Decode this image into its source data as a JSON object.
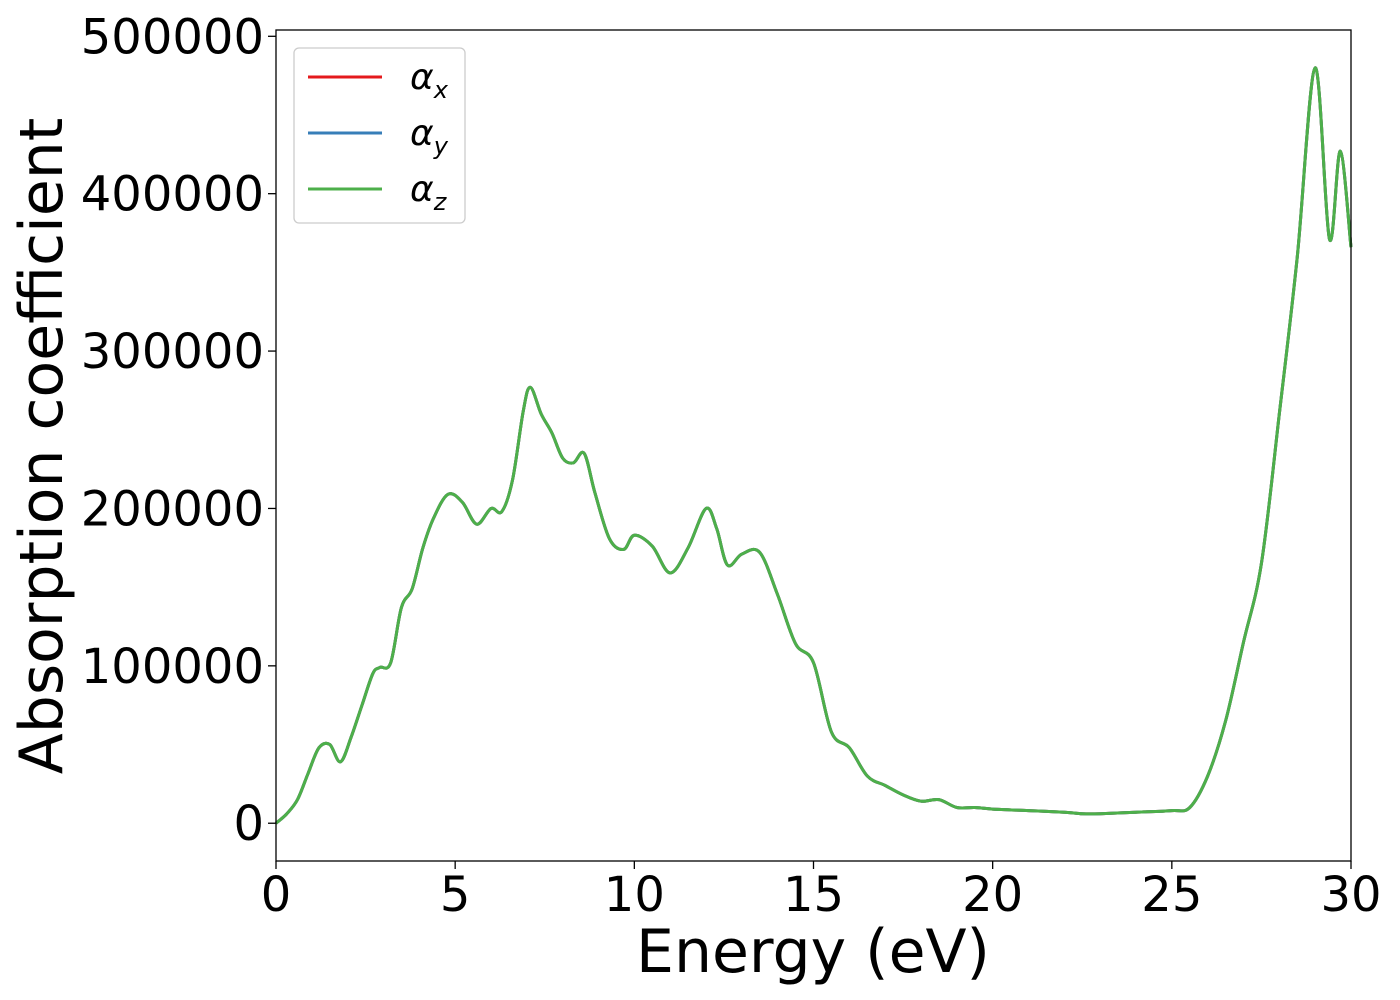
{
  "chart_data": {
    "type": "line",
    "title": "",
    "xlabel": "Energy (eV)",
    "ylabel": "Absorption coefficient",
    "xlim": [
      0,
      30
    ],
    "ylim": [
      -24000,
      504000
    ],
    "xticks": [
      0,
      5,
      10,
      15,
      20,
      25,
      30
    ],
    "yticks": [
      0,
      100000,
      200000,
      300000,
      400000,
      500000
    ],
    "xtick_labels": [
      "0",
      "5",
      "10",
      "15",
      "20",
      "25",
      "30"
    ],
    "ytick_labels": [
      "0",
      "100000",
      "200000",
      "300000",
      "400000",
      "500000"
    ],
    "grid": false,
    "legend_position": "top-left",
    "series": [
      {
        "name": "α",
        "subscript": "x",
        "color": "#e41a1c",
        "x": [
          0,
          0.3,
          0.6,
          0.9,
          1.2,
          1.5,
          1.8,
          2.1,
          2.4,
          2.7,
          2.9,
          3.2,
          3.5,
          3.8,
          4.1,
          4.4,
          4.8,
          5.2,
          5.6,
          6.0,
          6.3,
          6.6,
          6.9,
          7.1,
          7.4,
          7.7,
          8.0,
          8.3,
          8.6,
          8.9,
          9.3,
          9.7,
          10.0,
          10.5,
          11.0,
          11.5,
          12.0,
          12.3,
          12.6,
          13.0,
          13.5,
          14.0,
          14.5,
          15.0,
          15.5,
          16.0,
          16.5,
          17.0,
          17.5,
          18.0,
          18.5,
          19.0,
          19.5,
          20.0,
          21.0,
          22.0,
          22.5,
          23.0,
          24.0,
          25.0,
          25.5,
          26.0,
          26.5,
          27.0,
          27.5,
          28.0,
          28.5,
          29.0,
          29.4,
          29.7,
          30.0
        ],
        "values": [
          0,
          6000,
          15000,
          32000,
          48000,
          50000,
          39000,
          55000,
          75000,
          95000,
          99000,
          102000,
          137000,
          149000,
          175000,
          194000,
          209000,
          204000,
          190000,
          200000,
          198000,
          218000,
          262000,
          277000,
          260000,
          248000,
          232000,
          229000,
          235000,
          210000,
          181000,
          174000,
          183000,
          176000,
          159000,
          175000,
          200000,
          187000,
          164000,
          171000,
          172000,
          145000,
          114000,
          102000,
          58000,
          48000,
          30000,
          24000,
          18000,
          14000,
          15000,
          10000,
          10000,
          9000,
          8000,
          7000,
          6000,
          6000,
          7000,
          8000,
          10000,
          30000,
          65000,
          115000,
          165000,
          260000,
          360000,
          480000,
          371000,
          427000,
          366000
        ]
      },
      {
        "name": "α",
        "subscript": "y",
        "color": "#377eb8",
        "x": [
          0,
          0.3,
          0.6,
          0.9,
          1.2,
          1.5,
          1.8,
          2.1,
          2.4,
          2.7,
          2.9,
          3.2,
          3.5,
          3.8,
          4.1,
          4.4,
          4.8,
          5.2,
          5.6,
          6.0,
          6.3,
          6.6,
          6.9,
          7.1,
          7.4,
          7.7,
          8.0,
          8.3,
          8.6,
          8.9,
          9.3,
          9.7,
          10.0,
          10.5,
          11.0,
          11.5,
          12.0,
          12.3,
          12.6,
          13.0,
          13.5,
          14.0,
          14.5,
          15.0,
          15.5,
          16.0,
          16.5,
          17.0,
          17.5,
          18.0,
          18.5,
          19.0,
          19.5,
          20.0,
          21.0,
          22.0,
          22.5,
          23.0,
          24.0,
          25.0,
          25.5,
          26.0,
          26.5,
          27.0,
          27.5,
          28.0,
          28.5,
          29.0,
          29.4,
          29.7,
          30.0
        ],
        "values": [
          0,
          6000,
          15000,
          32000,
          48000,
          50000,
          39000,
          55000,
          75000,
          95000,
          99000,
          102000,
          137000,
          149000,
          175000,
          194000,
          209000,
          204000,
          190000,
          200000,
          198000,
          218000,
          262000,
          277000,
          260000,
          248000,
          232000,
          229000,
          235000,
          210000,
          181000,
          174000,
          183000,
          176000,
          159000,
          175000,
          200000,
          187000,
          164000,
          171000,
          172000,
          145000,
          114000,
          102000,
          58000,
          48000,
          30000,
          24000,
          18000,
          14000,
          15000,
          10000,
          10000,
          9000,
          8000,
          7000,
          6000,
          6000,
          7000,
          8000,
          10000,
          30000,
          65000,
          115000,
          165000,
          260000,
          360000,
          480000,
          371000,
          427000,
          366000
        ]
      },
      {
        "name": "α",
        "subscript": "z",
        "color": "#4daf4a",
        "x": [
          0,
          0.3,
          0.6,
          0.9,
          1.2,
          1.5,
          1.8,
          2.1,
          2.4,
          2.7,
          2.9,
          3.2,
          3.5,
          3.8,
          4.1,
          4.4,
          4.8,
          5.2,
          5.6,
          6.0,
          6.3,
          6.6,
          6.9,
          7.1,
          7.4,
          7.7,
          8.0,
          8.3,
          8.6,
          8.9,
          9.3,
          9.7,
          10.0,
          10.5,
          11.0,
          11.5,
          12.0,
          12.3,
          12.6,
          13.0,
          13.5,
          14.0,
          14.5,
          15.0,
          15.5,
          16.0,
          16.5,
          17.0,
          17.5,
          18.0,
          18.5,
          19.0,
          19.5,
          20.0,
          21.0,
          22.0,
          22.5,
          23.0,
          24.0,
          25.0,
          25.5,
          26.0,
          26.5,
          27.0,
          27.5,
          28.0,
          28.5,
          29.0,
          29.4,
          29.7,
          30.0
        ],
        "values": [
          0,
          6000,
          15000,
          32000,
          48000,
          50000,
          39000,
          55000,
          75000,
          95000,
          99000,
          102000,
          137000,
          149000,
          175000,
          194000,
          209000,
          204000,
          190000,
          200000,
          198000,
          218000,
          262000,
          277000,
          260000,
          248000,
          232000,
          229000,
          235000,
          210000,
          181000,
          174000,
          183000,
          176000,
          159000,
          175000,
          200000,
          187000,
          164000,
          171000,
          172000,
          145000,
          114000,
          102000,
          58000,
          48000,
          30000,
          24000,
          18000,
          14000,
          15000,
          10000,
          10000,
          9000,
          8000,
          7000,
          6000,
          6000,
          7000,
          8000,
          10000,
          30000,
          65000,
          115000,
          165000,
          260000,
          360000,
          480000,
          371000,
          427000,
          366000
        ]
      }
    ]
  }
}
